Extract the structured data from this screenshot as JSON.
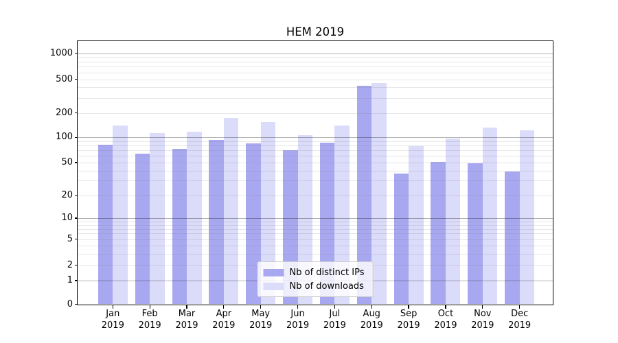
{
  "chart_data": {
    "type": "bar",
    "title": "HEM 2019",
    "categories": [
      "Jan 2019",
      "Feb 2019",
      "Mar 2019",
      "Apr 2019",
      "May 2019",
      "Jun 2019",
      "Jul 2019",
      "Aug 2019",
      "Sep 2019",
      "Oct 2019",
      "Nov 2019",
      "Dec 2019"
    ],
    "series": [
      {
        "name": "Nb of distinct IPs",
        "color": "#a8a8f0",
        "values": [
          81,
          64,
          73,
          94,
          85,
          70,
          87,
          415,
          37,
          51,
          49,
          39
        ]
      },
      {
        "name": "Nb of downloads",
        "color": "#dbdbfa",
        "values": [
          141,
          113,
          117,
          173,
          153,
          107,
          139,
          450,
          78,
          97,
          133,
          122
        ]
      }
    ],
    "yscale": "symlog",
    "y_tick_labels": [
      "1000",
      "500",
      "200",
      "100",
      "50",
      "20",
      "10",
      "5",
      "2",
      "1",
      "0"
    ],
    "ylim": [
      0,
      1400
    ],
    "xlabel": "",
    "ylabel": "",
    "grid": true,
    "legend_position": "lower center"
  }
}
